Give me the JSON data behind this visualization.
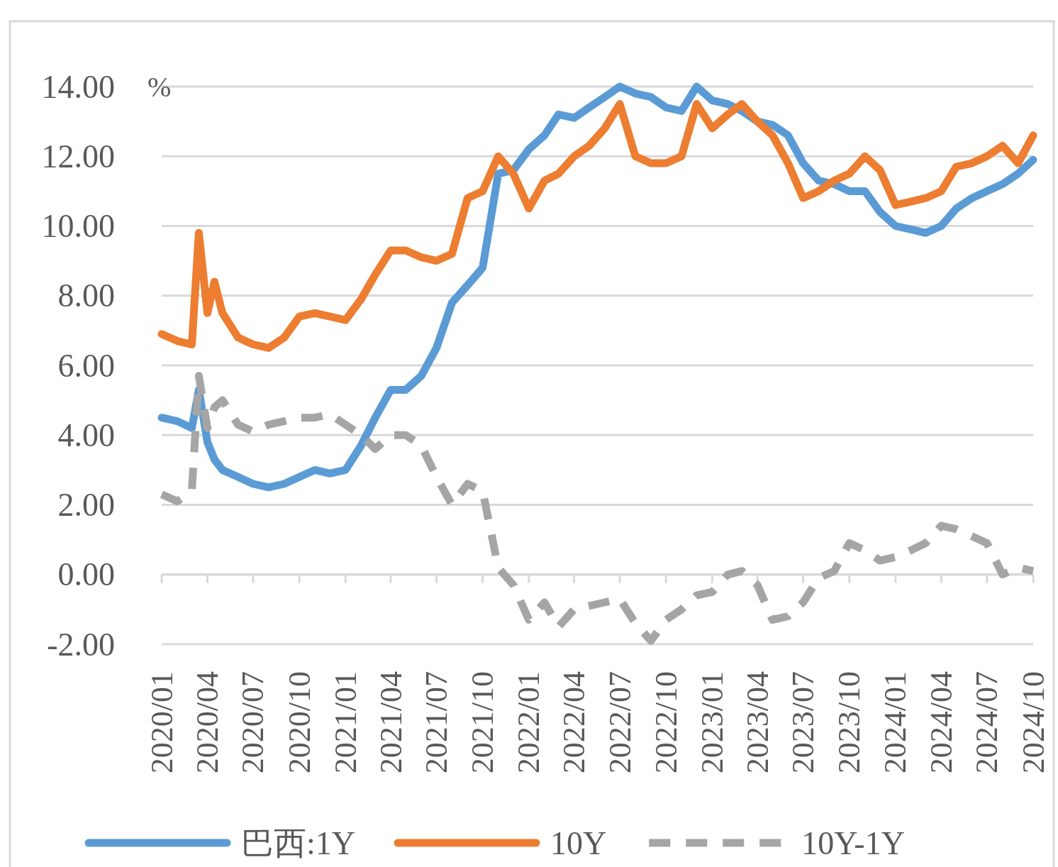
{
  "chart_data": {
    "type": "line",
    "ylabel": "%",
    "grid": "y",
    "legend": "bottom",
    "marker": "none",
    "x": [
      "2020-01-01",
      "2020-02-01",
      "2020-03-01",
      "2020-03-15",
      "2020-04-01",
      "2020-04-15",
      "2020-05-01",
      "2020-06-01",
      "2020-07-01",
      "2020-08-01",
      "2020-09-01",
      "2020-10-01",
      "2020-11-01",
      "2020-12-01",
      "2021-01-01",
      "2021-02-01",
      "2021-03-01",
      "2021-04-01",
      "2021-05-01",
      "2021-06-01",
      "2021-07-01",
      "2021-08-01",
      "2021-09-01",
      "2021-10-01",
      "2021-11-01",
      "2021-12-01",
      "2022-01-01",
      "2022-02-01",
      "2022-03-01",
      "2022-04-01",
      "2022-05-01",
      "2022-06-01",
      "2022-07-01",
      "2022-08-01",
      "2022-09-01",
      "2022-10-01",
      "2022-11-01",
      "2022-12-01",
      "2023-01-01",
      "2023-02-01",
      "2023-03-01",
      "2023-04-01",
      "2023-05-01",
      "2023-06-01",
      "2023-07-01",
      "2023-08-01",
      "2023-09-01",
      "2023-10-01",
      "2023-11-01",
      "2023-12-01",
      "2024-01-01",
      "2024-02-01",
      "2024-03-01",
      "2024-04-01",
      "2024-05-01",
      "2024-06-01",
      "2024-07-01",
      "2024-08-01",
      "2024-09-01",
      "2024-10-01"
    ],
    "xlim": [
      "2020-01-01",
      "2024-10-01"
    ],
    "xticks": [
      {
        "value": "2020-01-01",
        "label": "2020/01"
      },
      {
        "value": "2020-04-01",
        "label": "2020/04"
      },
      {
        "value": "2020-07-01",
        "label": "2020/07"
      },
      {
        "value": "2020-10-01",
        "label": "2020/10"
      },
      {
        "value": "2021-01-01",
        "label": "2021/01"
      },
      {
        "value": "2021-04-01",
        "label": "2021/04"
      },
      {
        "value": "2021-07-01",
        "label": "2021/07"
      },
      {
        "value": "2021-10-01",
        "label": "2021/10"
      },
      {
        "value": "2022-01-01",
        "label": "2022/01"
      },
      {
        "value": "2022-04-01",
        "label": "2022/04"
      },
      {
        "value": "2022-07-01",
        "label": "2022/07"
      },
      {
        "value": "2022-10-01",
        "label": "2022/10"
      },
      {
        "value": "2023-01-01",
        "label": "2023/01"
      },
      {
        "value": "2023-04-01",
        "label": "2023/04"
      },
      {
        "value": "2023-07-01",
        "label": "2023/07"
      },
      {
        "value": "2023-10-01",
        "label": "2023/10"
      },
      {
        "value": "2024-01-01",
        "label": "2024/01"
      },
      {
        "value": "2024-04-01",
        "label": "2024/04"
      },
      {
        "value": "2024-07-01",
        "label": "2024/07"
      },
      {
        "value": "2024-10-01",
        "label": "2024/10"
      }
    ],
    "ylim": [
      -2,
      14
    ],
    "yticks": [
      {
        "value": -2,
        "label": "-2.00"
      },
      {
        "value": 0,
        "label": "0.00"
      },
      {
        "value": 2,
        "label": "2.00"
      },
      {
        "value": 4,
        "label": "4.00"
      },
      {
        "value": 6,
        "label": "6.00"
      },
      {
        "value": 8,
        "label": "8.00"
      },
      {
        "value": 10,
        "label": "10.00"
      },
      {
        "value": 12,
        "label": "12.00"
      },
      {
        "value": 14,
        "label": "14.00"
      }
    ],
    "series": [
      {
        "name": "巴西:1Y",
        "color": "#5b9bd5",
        "line_style": "solid",
        "values": [
          4.5,
          4.4,
          4.2,
          5.3,
          3.8,
          3.3,
          3.0,
          2.8,
          2.6,
          2.5,
          2.6,
          2.8,
          3.0,
          2.9,
          3.0,
          3.7,
          4.5,
          5.3,
          5.3,
          5.7,
          6.5,
          7.8,
          8.3,
          8.8,
          11.5,
          11.6,
          12.2,
          12.6,
          13.2,
          13.1,
          13.4,
          13.7,
          14.0,
          13.8,
          13.7,
          13.4,
          13.3,
          14.0,
          13.6,
          13.5,
          13.3,
          13.0,
          12.9,
          12.6,
          11.8,
          11.3,
          11.2,
          11.0,
          11.0,
          10.4,
          10.0,
          9.9,
          9.8,
          10.0,
          10.5,
          10.8,
          11.0,
          11.2,
          11.5,
          11.9
        ]
      },
      {
        "name": "10Y",
        "color": "#ed7d31",
        "line_style": "solid",
        "values": [
          6.9,
          6.7,
          6.6,
          9.8,
          7.5,
          8.4,
          7.5,
          6.8,
          6.6,
          6.5,
          6.8,
          7.4,
          7.5,
          7.4,
          7.3,
          7.9,
          8.6,
          9.3,
          9.3,
          9.1,
          9.0,
          9.2,
          10.8,
          11.0,
          12.0,
          11.5,
          10.5,
          11.3,
          11.5,
          12.0,
          12.3,
          12.8,
          13.5,
          12.0,
          11.8,
          11.8,
          12.0,
          13.5,
          12.8,
          13.2,
          13.5,
          13.0,
          12.6,
          11.8,
          10.8,
          11.0,
          11.3,
          11.5,
          12.0,
          11.6,
          10.6,
          10.7,
          10.8,
          11.0,
          11.7,
          11.8,
          12.0,
          12.3,
          11.8,
          12.6
        ]
      },
      {
        "name": "10Y-1Y",
        "color": "#a5a5a5",
        "line_style": "dashed",
        "values": [
          2.3,
          2.1,
          2.4,
          5.7,
          4.2,
          4.8,
          5.0,
          4.3,
          4.1,
          4.3,
          4.4,
          4.5,
          4.5,
          4.6,
          4.3,
          4.0,
          3.6,
          4.0,
          4.0,
          3.7,
          2.8,
          2.0,
          2.6,
          2.4,
          0.2,
          -0.3,
          -1.3,
          -0.8,
          -1.5,
          -1.0,
          -0.9,
          -0.8,
          -0.7,
          -1.4,
          -1.9,
          -1.3,
          -1.0,
          -0.6,
          -0.5,
          0.0,
          0.1,
          -0.3,
          -1.3,
          -1.2,
          -0.8,
          -0.1,
          0.1,
          0.9,
          0.7,
          0.4,
          0.5,
          0.7,
          0.9,
          1.4,
          1.3,
          1.1,
          0.9,
          0.0,
          0.2,
          0.1
        ]
      }
    ]
  }
}
